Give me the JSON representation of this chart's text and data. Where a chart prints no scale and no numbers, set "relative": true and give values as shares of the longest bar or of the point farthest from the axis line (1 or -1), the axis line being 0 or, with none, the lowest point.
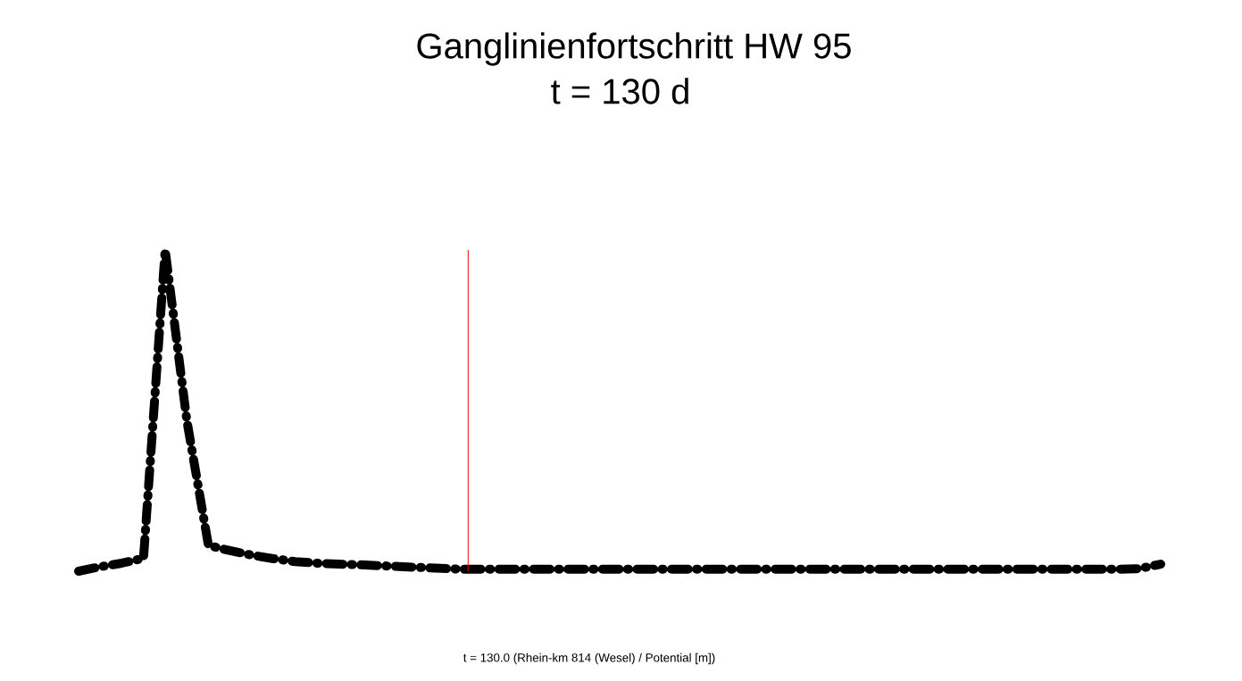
{
  "chart_data": {
    "type": "line",
    "title": "Ganglinienfortschritt HW 95",
    "subtitle": "t = 130 d",
    "annotations": [
      "t = 130.0 (Rhein-km 814 (Wesel) /  Potential [m])"
    ],
    "relative": true,
    "marker": "none",
    "line_style": "dashed",
    "categories": [
      null,
      null,
      null,
      null,
      null,
      null,
      null,
      null,
      null,
      null,
      null,
      null,
      null,
      null,
      null,
      null,
      null,
      null,
      null,
      null,
      null,
      null,
      null,
      null,
      null,
      null,
      null,
      null,
      null,
      null,
      null,
      null,
      null,
      null,
      null,
      null,
      null,
      null,
      null,
      null,
      null,
      null,
      null,
      null,
      null,
      null,
      null,
      null,
      null,
      null,
      null
    ],
    "series": [
      {
        "color": "#000000",
        "values": [
          0,
          0.014,
          0.025,
          0.04,
          1,
          0.47,
          0.08,
          0.064,
          0.05,
          0.039,
          0.03,
          0.025,
          0.022,
          0.02,
          0.017,
          0.014,
          0.011,
          0.008,
          0.006,
          0.006,
          0.006,
          0.006,
          0.006,
          0.006,
          0.006,
          0.006,
          0.006,
          0.006,
          0.006,
          0.006,
          0.006,
          0.006,
          0.006,
          0.006,
          0.006,
          0.006,
          0.006,
          0.006,
          0.006,
          0.006,
          0.006,
          0.006,
          0.006,
          0.006,
          0.006,
          0.006,
          0.006,
          0.006,
          0.006,
          0.008,
          0.022
        ]
      }
    ]
  }
}
